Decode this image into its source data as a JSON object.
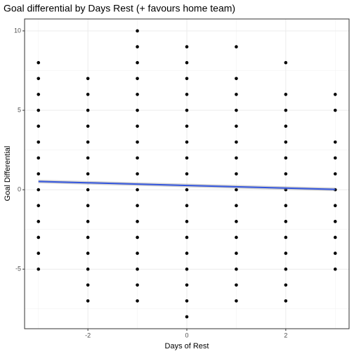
{
  "chart_data": {
    "type": "scatter",
    "title": "Goal differential by Days Rest (+ favours home team)",
    "x_label": "Days of Rest",
    "y_label": "Goal Differential",
    "color": "#000000",
    "x": [
      -3,
      -3,
      -3,
      -3,
      -3,
      -3,
      -3,
      -3,
      -3,
      -3,
      -3,
      -3,
      -3,
      -3,
      -2,
      -2,
      -2,
      -2,
      -2,
      -2,
      -2,
      -2,
      -2,
      -2,
      -2,
      -2,
      -2,
      -2,
      -2,
      -1,
      -1,
      -1,
      -1,
      -1,
      -1,
      -1,
      -1,
      -1,
      -1,
      -1,
      -1,
      -1,
      -1,
      -1,
      -1,
      -1,
      -1,
      0,
      0,
      0,
      0,
      0,
      0,
      0,
      0,
      0,
      0,
      0,
      0,
      0,
      0,
      0,
      0,
      0,
      0,
      1,
      1,
      1,
      1,
      1,
      1,
      1,
      1,
      1,
      1,
      1,
      1,
      1,
      1,
      1,
      1,
      2,
      2,
      2,
      2,
      2,
      2,
      2,
      2,
      2,
      2,
      2,
      2,
      2,
      2,
      2,
      3,
      3,
      3,
      3,
      3,
      3,
      3,
      3,
      3,
      3,
      3
    ],
    "values": [
      8,
      7,
      6,
      5,
      4,
      3,
      2,
      1,
      0,
      -1,
      -2,
      -3,
      -4,
      -5,
      7,
      6,
      5,
      4,
      3,
      2,
      1,
      0,
      -1,
      -2,
      -3,
      -4,
      -5,
      -6,
      -7,
      10,
      9,
      8,
      7,
      6,
      5,
      4,
      3,
      2,
      1,
      0,
      -1,
      -2,
      -3,
      -4,
      -5,
      -6,
      -7,
      9,
      8,
      7,
      6,
      5,
      4,
      3,
      2,
      1,
      0,
      -1,
      -2,
      -3,
      -4,
      -5,
      -6,
      -7,
      -8,
      9,
      7,
      6,
      5,
      4,
      3,
      2,
      1,
      0,
      -1,
      -2,
      -3,
      -4,
      -5,
      -6,
      -7,
      8,
      6,
      5,
      4,
      3,
      2,
      1,
      0,
      -1,
      -2,
      -3,
      -4,
      -5,
      -6,
      -7,
      6,
      5,
      3,
      2,
      1,
      0,
      -1,
      -2,
      -3,
      -4,
      -5
    ],
    "fit": {
      "x": [
        -3,
        3
      ],
      "values": [
        0.52,
        0.02
      ],
      "color": "#3355dd"
    },
    "xlim": [
      -3.28,
      3.28
    ],
    "ylim": [
      -8.75,
      10.75
    ],
    "xticks": [
      -2,
      0,
      2
    ],
    "yticks": [
      -5,
      0,
      5,
      10
    ],
    "grid": true
  }
}
